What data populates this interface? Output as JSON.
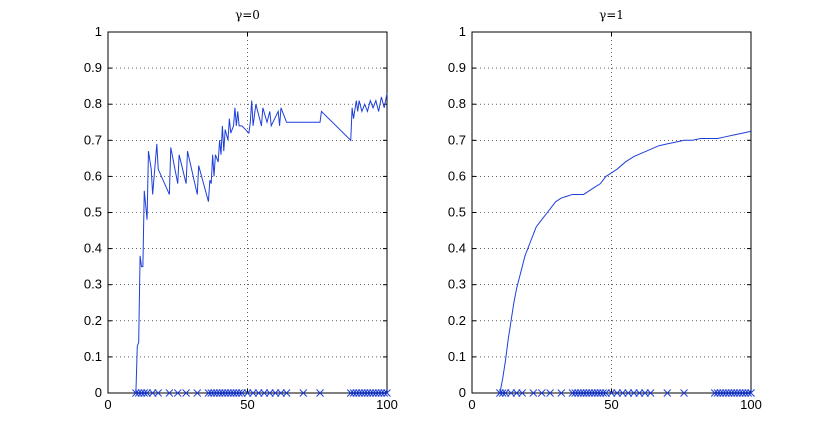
{
  "chart_data": [
    {
      "type": "line",
      "title": "γ=0",
      "xlabel": "",
      "ylabel": "",
      "xlim": [
        0,
        100
      ],
      "ylim": [
        0,
        1
      ],
      "xticks": [
        0,
        50,
        100
      ],
      "yticks": [
        0,
        0.1,
        0.2,
        0.3,
        0.4,
        0.5,
        0.6,
        0.7,
        0.8,
        0.9,
        1
      ],
      "grid": true,
      "series": [
        {
          "style": "line",
          "color": "#1f3fd9",
          "x": [
            10,
            10.5,
            11,
            11.5,
            12,
            12.5,
            13,
            14,
            14.5,
            15.5,
            16,
            17.5,
            18,
            22,
            22.5,
            25,
            25.5,
            28,
            28.5,
            32,
            32.5,
            36,
            36.5,
            37,
            37.5,
            38,
            38.5,
            39.5,
            40,
            40.5,
            41,
            41.5,
            42,
            43,
            43.5,
            44,
            45,
            45.5,
            46,
            46.5,
            47,
            48,
            50.5,
            51,
            51.5,
            52,
            53,
            55,
            55.5,
            57,
            58,
            58.5,
            61,
            61.5,
            62,
            64,
            70,
            76,
            76.5,
            87,
            87.5,
            88,
            89,
            89.5,
            90,
            91,
            92,
            93,
            94,
            95,
            96,
            97,
            98,
            99,
            100
          ],
          "y": [
            0,
            0.13,
            0.14,
            0.38,
            0.35,
            0.35,
            0.56,
            0.48,
            0.67,
            0.62,
            0.55,
            0.69,
            0.62,
            0.55,
            0.68,
            0.58,
            0.66,
            0.58,
            0.67,
            0.55,
            0.63,
            0.53,
            0.59,
            0.58,
            0.66,
            0.6,
            0.66,
            0.64,
            0.7,
            0.66,
            0.74,
            0.67,
            0.73,
            0.7,
            0.76,
            0.72,
            0.74,
            0.79,
            0.74,
            0.78,
            0.74,
            0.74,
            0.72,
            0.75,
            0.81,
            0.74,
            0.8,
            0.74,
            0.79,
            0.75,
            0.78,
            0.74,
            0.78,
            0.74,
            0.79,
            0.75,
            0.75,
            0.75,
            0.78,
            0.7,
            0.79,
            0.76,
            0.81,
            0.78,
            0.81,
            0.78,
            0.8,
            0.78,
            0.81,
            0.79,
            0.81,
            0.78,
            0.82,
            0.79,
            0.83
          ]
        },
        {
          "style": "marker-x",
          "color": "#1f3fd9",
          "x": [
            10,
            11,
            12,
            13,
            14,
            16,
            18,
            22,
            25,
            28,
            32,
            36,
            37,
            38,
            39,
            40,
            41,
            42,
            43,
            44,
            45,
            46,
            47,
            48,
            50,
            52,
            54,
            56,
            58,
            60,
            62,
            64,
            70,
            76,
            87,
            88,
            89,
            90,
            91,
            92,
            93,
            94,
            95,
            96,
            97,
            98,
            99,
            100
          ],
          "y": [
            0,
            0,
            0,
            0,
            0,
            0,
            0,
            0,
            0,
            0,
            0,
            0,
            0,
            0,
            0,
            0,
            0,
            0,
            0,
            0,
            0,
            0,
            0,
            0,
            0,
            0,
            0,
            0,
            0,
            0,
            0,
            0,
            0,
            0,
            0,
            0,
            0,
            0,
            0,
            0,
            0,
            0,
            0,
            0,
            0,
            0,
            0,
            0
          ]
        }
      ]
    },
    {
      "type": "line",
      "title": "γ=1",
      "xlabel": "",
      "ylabel": "",
      "xlim": [
        0,
        100
      ],
      "ylim": [
        0,
        1
      ],
      "xticks": [
        0,
        50,
        100
      ],
      "yticks": [
        0,
        0.1,
        0.2,
        0.3,
        0.4,
        0.5,
        0.6,
        0.7,
        0.8,
        0.9,
        1
      ],
      "grid": true,
      "series": [
        {
          "style": "line",
          "color": "#1f3fd9",
          "x": [
            10,
            11,
            12,
            13,
            14,
            15,
            16,
            17,
            18,
            19,
            20,
            21,
            22,
            23,
            24,
            25,
            26,
            27,
            28,
            29,
            30,
            32,
            34,
            36,
            38,
            40,
            42,
            44,
            46,
            48,
            50,
            52,
            55,
            58,
            61,
            64,
            67,
            70,
            73,
            76,
            79,
            82,
            85,
            88,
            91,
            94,
            97,
            100
          ],
          "y": [
            0,
            0.04,
            0.09,
            0.15,
            0.2,
            0.25,
            0.29,
            0.32,
            0.35,
            0.38,
            0.4,
            0.42,
            0.44,
            0.46,
            0.47,
            0.48,
            0.49,
            0.5,
            0.51,
            0.52,
            0.53,
            0.54,
            0.545,
            0.55,
            0.55,
            0.55,
            0.56,
            0.57,
            0.58,
            0.6,
            0.61,
            0.62,
            0.64,
            0.655,
            0.665,
            0.675,
            0.685,
            0.69,
            0.695,
            0.7,
            0.7,
            0.705,
            0.705,
            0.705,
            0.71,
            0.715,
            0.72,
            0.725
          ]
        },
        {
          "style": "marker-x",
          "color": "#1f3fd9",
          "x": [
            10,
            11,
            12,
            14,
            16,
            18,
            22,
            25,
            28,
            32,
            36,
            37,
            38,
            39,
            40,
            41,
            42,
            43,
            44,
            45,
            46,
            47,
            48,
            50,
            52,
            54,
            56,
            58,
            60,
            62,
            64,
            70,
            76,
            87,
            88,
            89,
            90,
            91,
            92,
            93,
            94,
            95,
            96,
            97,
            98,
            99,
            100
          ],
          "y": [
            0,
            0,
            0,
            0,
            0,
            0,
            0,
            0,
            0,
            0,
            0,
            0,
            0,
            0,
            0,
            0,
            0,
            0,
            0,
            0,
            0,
            0,
            0,
            0,
            0,
            0,
            0,
            0,
            0,
            0,
            0,
            0,
            0,
            0,
            0,
            0,
            0,
            0,
            0,
            0,
            0,
            0,
            0,
            0,
            0,
            0,
            0
          ]
        }
      ]
    }
  ]
}
